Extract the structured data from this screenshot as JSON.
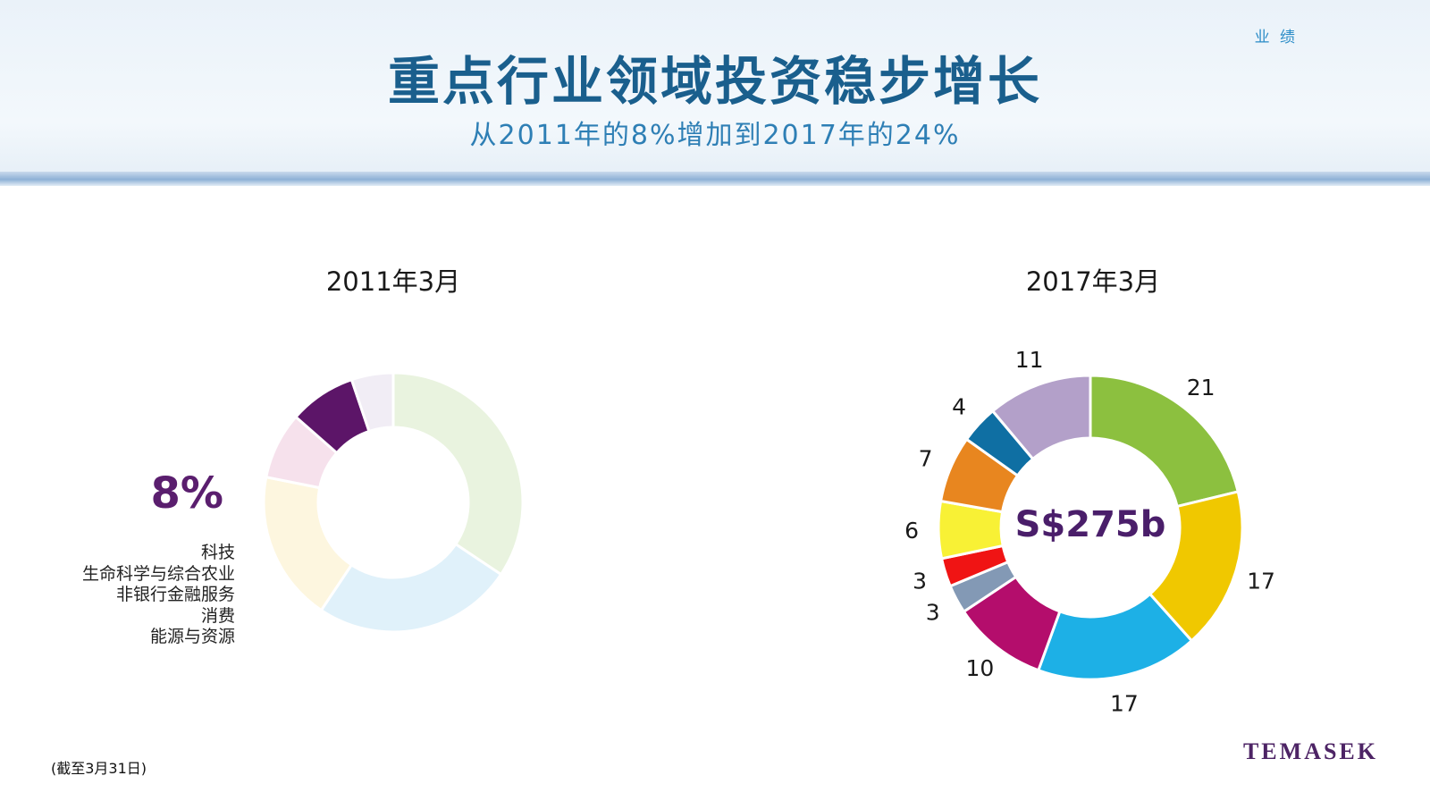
{
  "header": {
    "section_tag": "业 绩",
    "title": "重点行业领域投资稳步增长",
    "subtitle": "从2011年的8%增加到2017年的24%"
  },
  "chart_data": [
    {
      "type": "pie",
      "style": "donut",
      "title": "2011年3月",
      "highlight_value": "8%",
      "highlight_categories": [
        "科技",
        "生命科学与综合农业",
        "非银行金融服务",
        "消费",
        "能源与资源"
      ],
      "slices": [
        {
          "value": 33,
          "color": "#e9f3df"
        },
        {
          "value": 24,
          "color": "#e0f1fa"
        },
        {
          "value": 18,
          "color": "#fdf6df"
        },
        {
          "value": 8,
          "color": "#f6e1ec"
        },
        {
          "value": 8,
          "color": "#5c1568"
        },
        {
          "value": 5,
          "color": "#f1edf5"
        }
      ]
    },
    {
      "type": "pie",
      "style": "donut",
      "title": "2017年3月",
      "center_label": "S$275b",
      "slices": [
        {
          "value": 21,
          "label": "21",
          "color": "#8cc03f"
        },
        {
          "value": 17,
          "label": "17",
          "color": "#f0c800"
        },
        {
          "value": 17,
          "label": "17",
          "color": "#1db0e6"
        },
        {
          "value": 10,
          "label": "10",
          "color": "#b40d6c"
        },
        {
          "value": 3,
          "label": "3",
          "color": "#8399b5"
        },
        {
          "value": 3,
          "label": "3",
          "color": "#f01414"
        },
        {
          "value": 6,
          "label": "6",
          "color": "#f8f135"
        },
        {
          "value": 7,
          "label": "7",
          "color": "#e8861f"
        },
        {
          "value": 4,
          "label": "4",
          "color": "#0f6fa3"
        },
        {
          "value": 11,
          "label": "11",
          "color": "#b3a0c9"
        }
      ]
    }
  ],
  "footnote": "(截至3月31日)",
  "logo": "TEMASEK"
}
